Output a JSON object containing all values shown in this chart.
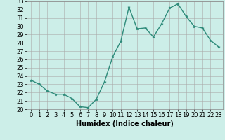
{
  "x": [
    0,
    1,
    2,
    3,
    4,
    5,
    6,
    7,
    8,
    9,
    10,
    11,
    12,
    13,
    14,
    15,
    16,
    17,
    18,
    19,
    20,
    21,
    22,
    23
  ],
  "y": [
    23.5,
    23.0,
    22.2,
    21.8,
    21.8,
    21.3,
    20.3,
    20.2,
    21.2,
    23.3,
    26.3,
    28.2,
    32.3,
    29.7,
    29.8,
    28.7,
    30.3,
    32.2,
    32.7,
    31.2,
    30.0,
    29.8,
    28.3,
    27.5
  ],
  "xlabel": "Humidex (Indice chaleur)",
  "ylim": [
    20,
    33
  ],
  "xlim": [
    -0.5,
    23.5
  ],
  "yticks": [
    20,
    21,
    22,
    23,
    24,
    25,
    26,
    27,
    28,
    29,
    30,
    31,
    32,
    33
  ],
  "xticks": [
    0,
    1,
    2,
    3,
    4,
    5,
    6,
    7,
    8,
    9,
    10,
    11,
    12,
    13,
    14,
    15,
    16,
    17,
    18,
    19,
    20,
    21,
    22,
    23
  ],
  "line_color": "#2e8b7a",
  "marker": "*",
  "bg_color": "#cceee8",
  "grid_color": "#aaaaaa",
  "xlabel_fontsize": 7,
  "tick_fontsize": 6,
  "linewidth": 1.0,
  "markersize": 2.5
}
